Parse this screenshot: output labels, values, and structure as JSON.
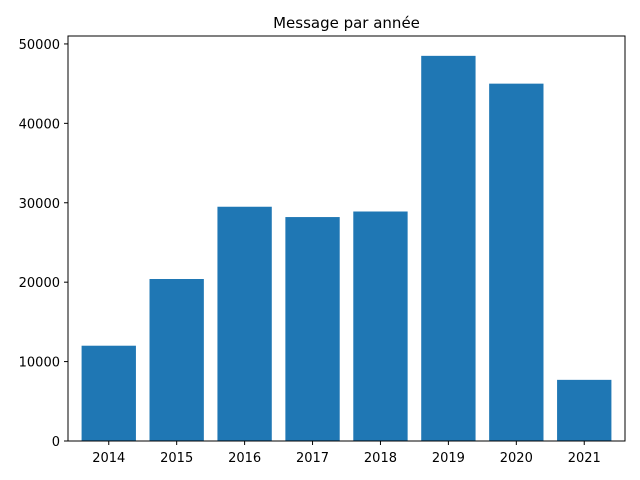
{
  "chart_data": {
    "type": "bar",
    "title": "Message par année",
    "xlabel": "",
    "ylabel": "",
    "categories": [
      "2014",
      "2015",
      "2016",
      "2017",
      "2018",
      "2019",
      "2020",
      "2021"
    ],
    "values": [
      12000,
      20400,
      29500,
      28200,
      28900,
      48500,
      45000,
      7700
    ],
    "ylim": [
      0,
      51000
    ],
    "yticks": [
      0,
      10000,
      20000,
      30000,
      40000,
      50000
    ],
    "ytick_labels": [
      "0",
      "10000",
      "20000",
      "30000",
      "40000",
      "50000"
    ],
    "grid": false,
    "legend": false,
    "bar_color": "#1f77b4"
  }
}
